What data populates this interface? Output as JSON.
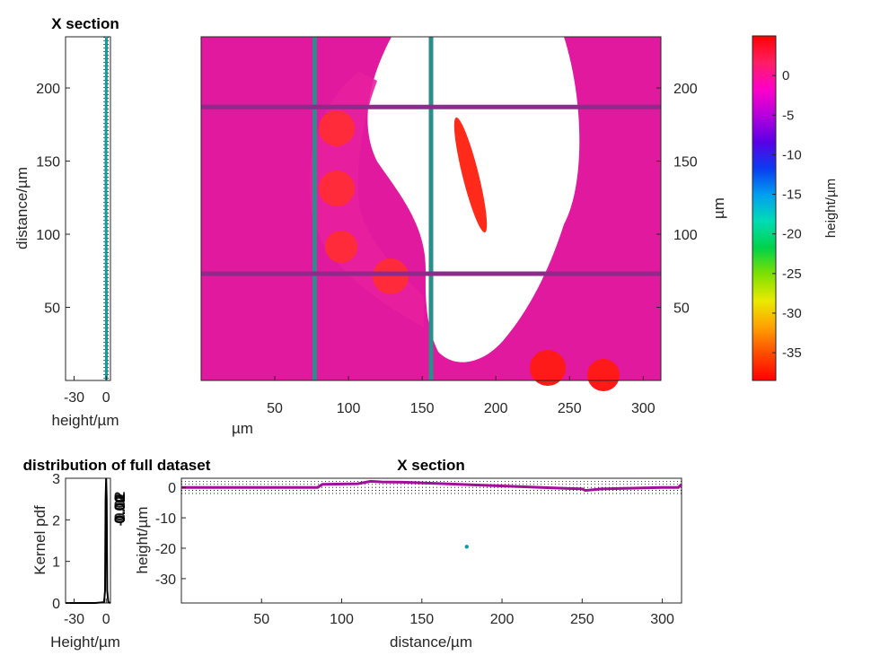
{
  "colors": {
    "surface": "#e0199e",
    "crosshair_v": "#2a8f8a",
    "crosshair_h": "#8e2a8a",
    "profile": "#0aa0a0",
    "profile_alt": "#a0109a",
    "pdf_line": "#000000"
  },
  "colorbar_colors": [
    "#ff0000",
    "#ff4a00",
    "#ffa000",
    "#eaea00",
    "#7fe000",
    "#00d24a",
    "#00dcb4",
    "#00a0f0",
    "#0a3cf0",
    "#5a00e6",
    "#b400dc",
    "#ff00c8",
    "#ff1e64",
    "#ff0000"
  ],
  "map": {
    "xlabel": "µm",
    "ylabel": "µm",
    "x_ticks": [
      "50",
      "100",
      "150",
      "200",
      "250",
      "300"
    ],
    "y_ticks": [
      "50",
      "100",
      "150",
      "200"
    ]
  },
  "colorbar": {
    "label": "height/µm",
    "ticks": [
      "0",
      "-5",
      "-10",
      "-15",
      "-20",
      "-25",
      "-30",
      "-35"
    ]
  },
  "xsec_left": {
    "title": "X section",
    "xlabel": "height/µm",
    "ylabel": "distance/µm",
    "x_ticks": [
      "-30",
      "0"
    ],
    "y_ticks": [
      "50",
      "100",
      "150",
      "200"
    ]
  },
  "pdf_panel": {
    "title": "distribution of full dataset",
    "xlabel": "Height/µm",
    "ylabel": "Kernel pdf",
    "x_ticks": [
      "-30",
      "0"
    ],
    "y_ticks": [
      "0",
      "1",
      "2",
      "3"
    ],
    "overlap_labels": [
      "-0.02",
      "0.02",
      "0.01",
      "0.00"
    ]
  },
  "xsec_bottom": {
    "title": "X section",
    "xlabel": "distance/µm",
    "ylabel": "height/µm",
    "x_ticks": [
      "50",
      "100",
      "150",
      "200",
      "250",
      "300"
    ],
    "y_ticks": [
      "0",
      "-10",
      "-20",
      "-30"
    ]
  },
  "chart_data": [
    {
      "type": "heatmap",
      "xlabel": "µm",
      "ylabel": "µm",
      "xlim": [
        0,
        312
      ],
      "ylim": [
        0,
        235
      ],
      "x_ticks": [
        50,
        100,
        150,
        200,
        250,
        300
      ],
      "y_ticks": [
        50,
        100,
        150,
        200
      ],
      "crosshair_x": [
        77,
        156
      ],
      "crosshair_y": [
        73,
        187
      ],
      "colorbar": {
        "label": "height/µm",
        "range": [
          -38.5,
          5
        ],
        "ticks": [
          0,
          -5,
          -10,
          -15,
          -20,
          -25,
          -30,
          -35
        ]
      }
    },
    {
      "type": "line",
      "title": "X section",
      "xlabel": "height/µm",
      "ylabel": "distance/µm",
      "xlim": [
        -38,
        4
      ],
      "ylim": [
        0,
        235
      ],
      "x_ticks": [
        -30,
        0
      ],
      "y_ticks": [
        50,
        100,
        150,
        200
      ],
      "x": [
        0.1,
        0.2,
        0.2,
        0.1,
        0.0,
        0.0,
        -0.2,
        -0.2,
        0.0,
        0.1,
        0.2
      ],
      "y": [
        0,
        20,
        40,
        60,
        80,
        100,
        130,
        160,
        190,
        215,
        235
      ]
    },
    {
      "type": "line",
      "title": "distribution of full dataset",
      "xlabel": "Height/µm",
      "ylabel": "Kernel pdf",
      "xlim": [
        -38,
        4
      ],
      "ylim": [
        0,
        3
      ],
      "x_ticks": [
        -30,
        0
      ],
      "y_ticks": [
        0,
        1,
        2,
        3
      ],
      "x": [
        -38,
        -30,
        -20,
        -10,
        -2,
        -1,
        -0.5,
        0,
        0.5,
        1,
        2,
        4
      ],
      "y": [
        0.0,
        0.0,
        0.0,
        0.0,
        0.02,
        0.3,
        2.5,
        3.0,
        2.5,
        0.3,
        0.02,
        0.0
      ]
    },
    {
      "type": "line",
      "title": "X section",
      "xlabel": "distance/µm",
      "ylabel": "height/µm",
      "xlim": [
        0,
        312
      ],
      "ylim": [
        -38,
        3
      ],
      "x_ticks": [
        50,
        100,
        150,
        200,
        250,
        300
      ],
      "y_ticks": [
        0,
        -10,
        -20,
        -30
      ],
      "x": [
        0,
        40,
        85,
        88,
        110,
        118,
        125,
        138,
        250,
        252,
        262,
        300,
        310,
        312
      ],
      "y": [
        0,
        0,
        0,
        1,
        1.2,
        2,
        1.8,
        1.7,
        -0.5,
        -1,
        -0.5,
        0,
        0,
        1
      ]
    }
  ]
}
